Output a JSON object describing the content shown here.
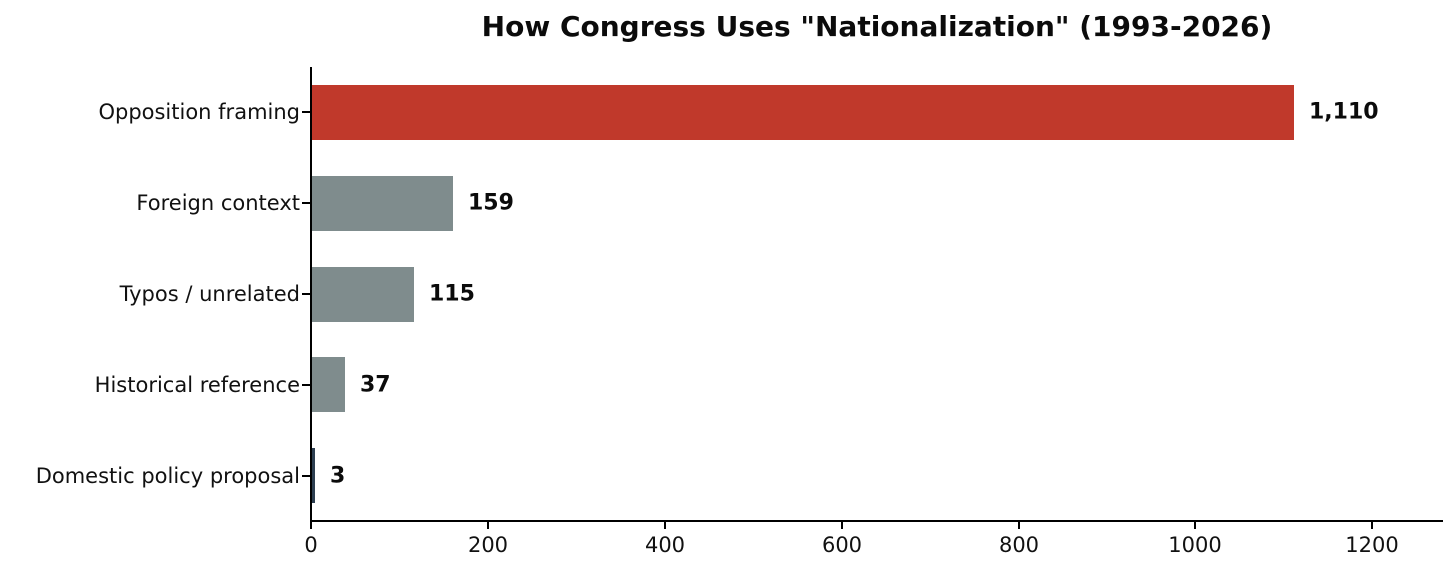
{
  "chart_data": {
    "type": "bar",
    "orientation": "horizontal",
    "title": "How Congress Uses \"Nationalization\" (1993-2026)",
    "categories": [
      "Opposition framing",
      "Foreign context",
      "Typos / unrelated",
      "Historical reference",
      "Domestic policy proposal"
    ],
    "values": [
      1110,
      159,
      115,
      37,
      3
    ],
    "value_labels": [
      "1,110",
      "159",
      "115",
      "37",
      "3"
    ],
    "bar_colors": [
      "#c0392b",
      "#7f8c8d",
      "#7f8c8d",
      "#7f8c8d",
      "#2c3e50"
    ],
    "highlight_color": "#c0392b",
    "default_bar_color": "#7f8c8d",
    "xlabel": "",
    "ylabel": "",
    "xlim": [
      0,
      1280
    ],
    "x_ticks": [
      0,
      200,
      400,
      600,
      800,
      1000,
      1200
    ],
    "x_tick_labels": [
      "0",
      "200",
      "400",
      "600",
      "800",
      "1000",
      "1200"
    ],
    "grid": false,
    "legend": null
  }
}
